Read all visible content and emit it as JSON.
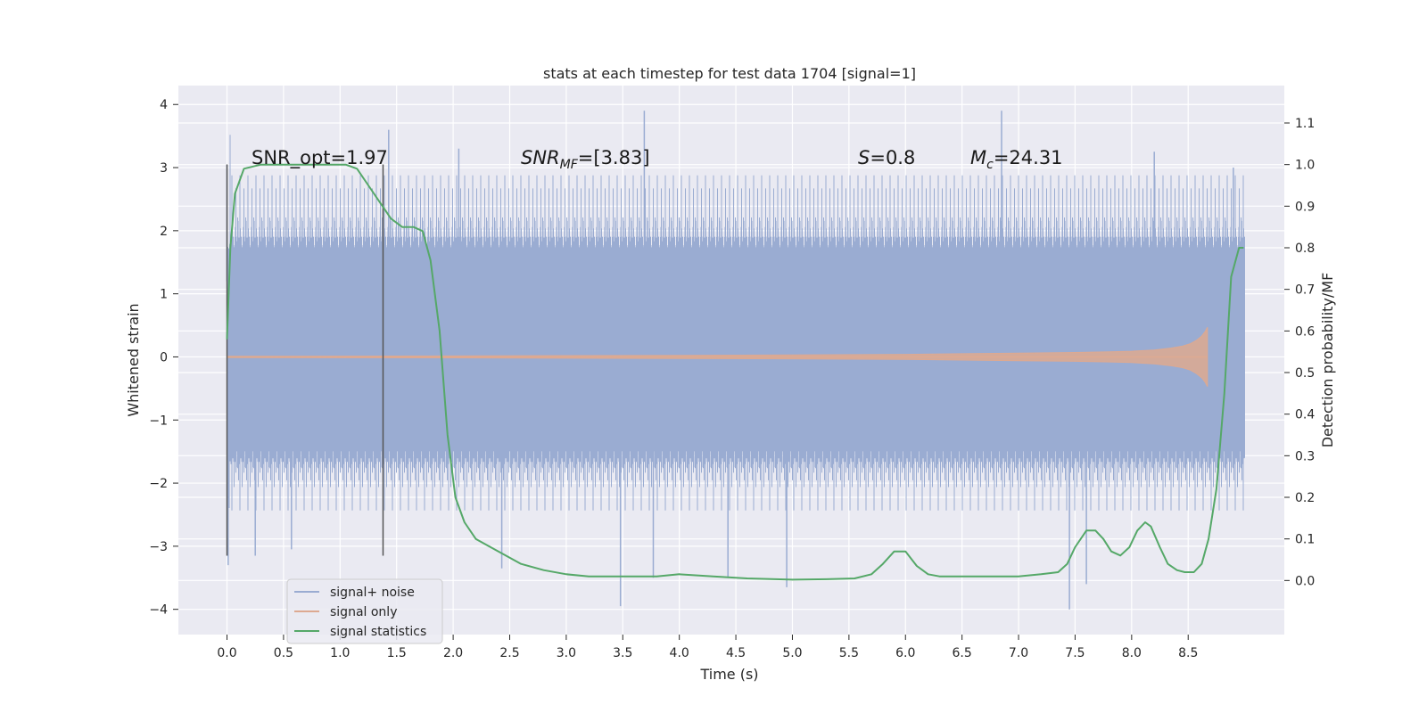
{
  "chart_data": {
    "type": "line",
    "title": "stats at each timestep for test data 1704 [signal=1]",
    "xlabel": "Time (s)",
    "ylabel_left": "Whitened strain",
    "ylabel_right": "Detection probability/MF",
    "xlim": [
      -0.43,
      9.35
    ],
    "ylim_left": [
      -4.4,
      4.3
    ],
    "ylim_right": [
      -0.13,
      1.19
    ],
    "x_ticks": [
      0.0,
      0.5,
      1.0,
      1.5,
      2.0,
      2.5,
      3.0,
      3.5,
      4.0,
      4.5,
      5.0,
      5.5,
      6.0,
      6.5,
      7.0,
      7.5,
      8.0,
      8.5
    ],
    "x_tick_labels": [
      "0.0",
      "0.5",
      "1.0",
      "1.5",
      "2.0",
      "2.5",
      "3.0",
      "3.5",
      "4.0",
      "4.5",
      "5.0",
      "5.5",
      "6.0",
      "6.5",
      "7.0",
      "7.5",
      "8.0",
      "8.5"
    ],
    "y_left_ticks": [
      4,
      3,
      2,
      1,
      0,
      -1,
      -2,
      -3,
      -4
    ],
    "y_left_tick_labels": [
      "4",
      "3",
      "2",
      "1",
      "0",
      "−1",
      "−2",
      "−3",
      "−4"
    ],
    "y_right_ticks": [
      1.1,
      1.0,
      0.9,
      0.8,
      0.7,
      0.6,
      0.5,
      0.4,
      0.3,
      0.2,
      0.1,
      0.0
    ],
    "y_right_tick_labels": [
      "1.1",
      "1.0",
      "0.9",
      "0.8",
      "0.7",
      "0.6",
      "0.5",
      "0.4",
      "0.3",
      "0.2",
      "0.1",
      "0.0"
    ],
    "annotations": {
      "snr_opt": "SNR_opt=1.97",
      "snr_mf_main": "SNR",
      "snr_mf_sub": "MF",
      "snr_mf_value": "=[3.83]",
      "s_main": "S",
      "s_value": "=0.8",
      "mc_main": "M",
      "mc_sub": "c",
      "mc_value": "=24.31"
    },
    "vlines_x": [
      0.0,
      1.38
    ],
    "series": [
      {
        "name": "signal+ noise",
        "color": "#9aacd2",
        "x_range": [
          0.0,
          9.0
        ],
        "envelope_typical": [
          -2.0,
          2.4
        ],
        "notable_peaks": [
          {
            "x": 0.0,
            "y": 3.05
          },
          {
            "x": 0.01,
            "y": -3.3
          },
          {
            "x": 0.25,
            "y": -3.15
          },
          {
            "x": 0.57,
            "y": -3.05
          },
          {
            "x": 1.43,
            "y": 3.6
          },
          {
            "x": 2.05,
            "y": 3.3
          },
          {
            "x": 2.43,
            "y": -3.35
          },
          {
            "x": 3.48,
            "y": -3.95
          },
          {
            "x": 3.69,
            "y": 3.9
          },
          {
            "x": 3.77,
            "y": -3.5
          },
          {
            "x": 4.43,
            "y": -3.5
          },
          {
            "x": 4.95,
            "y": -3.65
          },
          {
            "x": 6.85,
            "y": 3.9
          },
          {
            "x": 7.45,
            "y": -4.0
          },
          {
            "x": 7.6,
            "y": -3.6
          },
          {
            "x": 8.2,
            "y": 3.25
          },
          {
            "x": 8.9,
            "y": 3.0
          }
        ]
      },
      {
        "name": "signal only",
        "color": "#dda991",
        "x": [
          0.0,
          2.0,
          3.0,
          4.0,
          5.0,
          6.0,
          6.5,
          7.0,
          7.5,
          7.8,
          8.0,
          8.2,
          8.35,
          8.45,
          8.52,
          8.57,
          8.62,
          8.65,
          8.67
        ],
        "amplitude": [
          0.01,
          0.015,
          0.02,
          0.025,
          0.03,
          0.04,
          0.05,
          0.06,
          0.07,
          0.08,
          0.09,
          0.11,
          0.14,
          0.17,
          0.21,
          0.26,
          0.33,
          0.4,
          0.47
        ]
      },
      {
        "name": "signal statistics",
        "color": "#55a868",
        "axis": "right",
        "x": [
          0.0,
          0.03,
          0.07,
          0.15,
          0.3,
          0.5,
          0.8,
          1.05,
          1.15,
          1.25,
          1.35,
          1.45,
          1.55,
          1.65,
          1.73,
          1.8,
          1.88,
          1.95,
          2.02,
          2.1,
          2.2,
          2.4,
          2.6,
          2.8,
          3.0,
          3.2,
          3.5,
          3.8,
          4.0,
          4.3,
          4.6,
          5.0,
          5.3,
          5.55,
          5.7,
          5.8,
          5.9,
          6.0,
          6.1,
          6.2,
          6.3,
          6.5,
          6.8,
          7.0,
          7.2,
          7.35,
          7.43,
          7.5,
          7.6,
          7.68,
          7.75,
          7.82,
          7.9,
          7.98,
          8.05,
          8.12,
          8.17,
          8.25,
          8.32,
          8.4,
          8.47,
          8.55,
          8.62,
          8.68,
          8.75,
          8.82,
          8.88,
          8.95,
          8.99
        ],
        "y": [
          0.58,
          0.8,
          0.93,
          0.99,
          1.0,
          1.0,
          1.0,
          1.0,
          0.99,
          0.95,
          0.91,
          0.87,
          0.85,
          0.85,
          0.84,
          0.77,
          0.6,
          0.35,
          0.2,
          0.14,
          0.1,
          0.07,
          0.04,
          0.025,
          0.015,
          0.01,
          0.01,
          0.01,
          0.015,
          0.01,
          0.005,
          0.002,
          0.003,
          0.005,
          0.015,
          0.04,
          0.07,
          0.07,
          0.035,
          0.015,
          0.01,
          0.01,
          0.01,
          0.01,
          0.015,
          0.02,
          0.04,
          0.08,
          0.12,
          0.12,
          0.1,
          0.07,
          0.06,
          0.08,
          0.12,
          0.14,
          0.13,
          0.08,
          0.04,
          0.025,
          0.02,
          0.02,
          0.04,
          0.1,
          0.22,
          0.45,
          0.73,
          0.8,
          0.8
        ]
      }
    ],
    "legend": {
      "position": "lower-left",
      "entries": [
        "signal+ noise",
        "signal only",
        "signal statistics"
      ]
    },
    "grid": true
  },
  "colors": {
    "axes_bg": "#eaeaf2",
    "grid": "#ffffff",
    "vline": "#555555"
  }
}
